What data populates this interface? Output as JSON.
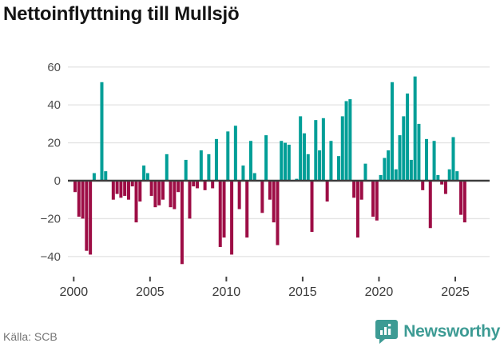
{
  "title": "Nettoinflyttning till Mullsjö",
  "footer": {
    "source": "Källa: SCB",
    "brand": "Newsworthy",
    "brand_color": "#3d9b94"
  },
  "chart_data": {
    "type": "bar",
    "title": "Nettoinflyttning till Mullsjö",
    "frequency": "quarterly",
    "period_start": "2000 Q1",
    "period_end": "2025 Q3",
    "values": [
      -6,
      -19,
      -20,
      -37,
      -39,
      4,
      0,
      52,
      5,
      0,
      -10,
      -7,
      -9,
      -8,
      -10,
      -3,
      -22,
      -11,
      8,
      4,
      -8,
      -14,
      -13,
      -10,
      14,
      -14,
      -15,
      -6,
      -44,
      11,
      -20,
      -3,
      -4,
      16,
      -5,
      14,
      -4,
      22,
      -35,
      -30,
      26,
      -39,
      29,
      -15,
      8,
      -30,
      21,
      4,
      0,
      -17,
      24,
      -10,
      -22,
      -34,
      21,
      20,
      19,
      0,
      1,
      34,
      25,
      14,
      -27,
      32,
      16,
      33,
      -11,
      21,
      0,
      13,
      34,
      42,
      43,
      -9,
      -30,
      -10,
      9,
      0,
      -19,
      -21,
      3,
      12,
      16,
      52,
      6,
      24,
      34,
      46,
      11,
      55,
      30,
      -5,
      22,
      -25,
      21,
      3,
      -2,
      -7,
      6,
      23,
      5,
      -18,
      -22
    ],
    "x_tick_labels": [
      "2000",
      "2005",
      "2010",
      "2015",
      "2020",
      "2025"
    ],
    "y_tick_labels": [
      "60",
      "40",
      "20",
      "0",
      "−20",
      "−40"
    ],
    "y_tick_values": [
      60,
      40,
      20,
      0,
      -20,
      -40
    ],
    "ylim": [
      -47,
      62
    ],
    "grid": true,
    "legend": false,
    "colors": {
      "positive": "#009e97",
      "negative": "#9d0d45",
      "grid": "#e4e4e4",
      "zero_axis": "#3d3d3d",
      "tick_text": "#3a3a3a",
      "y_label_text": "#4d4d4d"
    }
  }
}
